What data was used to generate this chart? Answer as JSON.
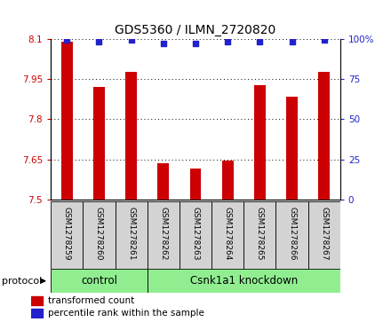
{
  "title": "GDS5360 / ILMN_2720820",
  "samples": [
    "GSM1278259",
    "GSM1278260",
    "GSM1278261",
    "GSM1278262",
    "GSM1278263",
    "GSM1278264",
    "GSM1278265",
    "GSM1278266",
    "GSM1278267"
  ],
  "transformed_count": [
    8.09,
    7.92,
    7.975,
    7.635,
    7.615,
    7.645,
    7.925,
    7.885,
    7.975
  ],
  "percentile_rank": [
    99,
    98,
    99,
    97,
    97,
    98,
    98,
    98,
    99
  ],
  "ylim_left": [
    7.5,
    8.1
  ],
  "ylim_right": [
    0,
    100
  ],
  "yticks_left": [
    7.5,
    7.65,
    7.8,
    7.95,
    8.1
  ],
  "yticks_right": [
    0,
    25,
    50,
    75,
    100
  ],
  "right_tick_labels": [
    "0",
    "25",
    "50",
    "75",
    "100%"
  ],
  "bar_color": "#cc0000",
  "dot_color": "#2222cc",
  "bar_width": 0.35,
  "groups": [
    {
      "label": "control",
      "start": 0,
      "end": 2
    },
    {
      "label": "Csnk1a1 knockdown",
      "start": 3,
      "end": 8
    }
  ],
  "left_tick_color": "#cc0000",
  "right_tick_color": "#2222cc",
  "bg_color": "#ffffff",
  "sample_box_color": "#d3d3d3",
  "group_box_color": "#90ee90",
  "legend_items": [
    {
      "label": "transformed count",
      "color": "#cc0000"
    },
    {
      "label": "percentile rank within the sample",
      "color": "#2222cc"
    }
  ],
  "protocol_label": "protocol",
  "font_size_title": 10,
  "font_size_ticks": 7.5,
  "font_size_sample": 6.5,
  "font_size_group": 8.5,
  "font_size_protocol": 8,
  "font_size_legend": 7.5
}
